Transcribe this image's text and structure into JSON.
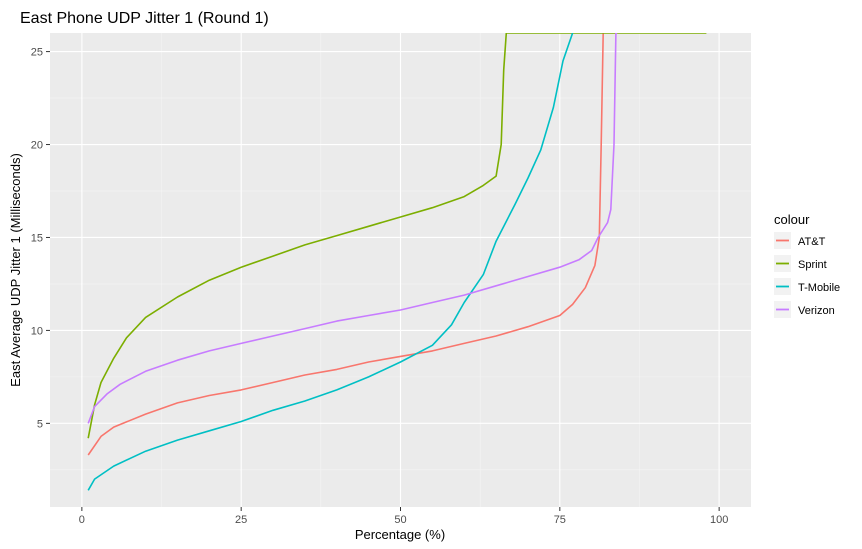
{
  "chart_data": {
    "type": "line",
    "title": "East Phone UDP Jitter 1 (Round 1)",
    "xlabel": "Percentage (%)",
    "ylabel": "East Average UDP Jitter 1 (Milliseconds)",
    "xlim": [
      -5,
      105
    ],
    "ylim": [
      0.5,
      26
    ],
    "xticks": [
      0,
      25,
      50,
      75,
      100
    ],
    "xtick_labels": [
      "0",
      "25",
      "50",
      "75",
      "100"
    ],
    "yticks": [
      5,
      10,
      15,
      20,
      25
    ],
    "ytick_labels": [
      "5",
      "10",
      "15",
      "20",
      "25"
    ],
    "grid": true,
    "legend": {
      "title": "colour",
      "placement": "right"
    },
    "series": [
      {
        "name": "AT&T",
        "color": "#F8766D",
        "points": [
          [
            1,
            3.3
          ],
          [
            3,
            4.3
          ],
          [
            5,
            4.8
          ],
          [
            10,
            5.5
          ],
          [
            15,
            6.1
          ],
          [
            20,
            6.5
          ],
          [
            25,
            6.8
          ],
          [
            30,
            7.2
          ],
          [
            35,
            7.6
          ],
          [
            40,
            7.9
          ],
          [
            45,
            8.3
          ],
          [
            50,
            8.6
          ],
          [
            55,
            8.9
          ],
          [
            60,
            9.3
          ],
          [
            65,
            9.7
          ],
          [
            70,
            10.2
          ],
          [
            75,
            10.8
          ],
          [
            77,
            11.4
          ],
          [
            79,
            12.3
          ],
          [
            80.5,
            13.5
          ],
          [
            81.2,
            15
          ],
          [
            81.5,
            20
          ],
          [
            81.8,
            26
          ]
        ]
      },
      {
        "name": "Sprint",
        "color": "#7CAE00",
        "points": [
          [
            1,
            4.2
          ],
          [
            2,
            6.0
          ],
          [
            3,
            7.2
          ],
          [
            5,
            8.5
          ],
          [
            7,
            9.6
          ],
          [
            10,
            10.7
          ],
          [
            15,
            11.8
          ],
          [
            20,
            12.7
          ],
          [
            25,
            13.4
          ],
          [
            30,
            14.0
          ],
          [
            35,
            14.6
          ],
          [
            40,
            15.1
          ],
          [
            45,
            15.6
          ],
          [
            50,
            16.1
          ],
          [
            55,
            16.6
          ],
          [
            60,
            17.2
          ],
          [
            63,
            17.8
          ],
          [
            65,
            18.3
          ],
          [
            65.8,
            20
          ],
          [
            66.2,
            24
          ],
          [
            66.6,
            26
          ],
          [
            98,
            26
          ]
        ]
      },
      {
        "name": "T-Mobile",
        "color": "#00BFC4",
        "points": [
          [
            1,
            1.4
          ],
          [
            2,
            2.0
          ],
          [
            5,
            2.7
          ],
          [
            10,
            3.5
          ],
          [
            15,
            4.1
          ],
          [
            20,
            4.6
          ],
          [
            25,
            5.1
          ],
          [
            30,
            5.7
          ],
          [
            35,
            6.2
          ],
          [
            40,
            6.8
          ],
          [
            45,
            7.5
          ],
          [
            50,
            8.3
          ],
          [
            55,
            9.2
          ],
          [
            58,
            10.3
          ],
          [
            60,
            11.5
          ],
          [
            63,
            13
          ],
          [
            65,
            14.8
          ],
          [
            68,
            16.8
          ],
          [
            70,
            18.2
          ],
          [
            72,
            19.7
          ],
          [
            74,
            22
          ],
          [
            75.5,
            24.5
          ],
          [
            77,
            26
          ]
        ]
      },
      {
        "name": "Verizon",
        "color": "#C77CFF",
        "points": [
          [
            1,
            5.0
          ],
          [
            2,
            5.9
          ],
          [
            4,
            6.6
          ],
          [
            6,
            7.1
          ],
          [
            10,
            7.8
          ],
          [
            15,
            8.4
          ],
          [
            20,
            8.9
          ],
          [
            25,
            9.3
          ],
          [
            30,
            9.7
          ],
          [
            35,
            10.1
          ],
          [
            40,
            10.5
          ],
          [
            45,
            10.8
          ],
          [
            50,
            11.1
          ],
          [
            55,
            11.5
          ],
          [
            60,
            11.9
          ],
          [
            65,
            12.4
          ],
          [
            70,
            12.9
          ],
          [
            75,
            13.4
          ],
          [
            78,
            13.8
          ],
          [
            80,
            14.3
          ],
          [
            81,
            15
          ],
          [
            82.5,
            15.8
          ],
          [
            83,
            16.5
          ],
          [
            83.5,
            20
          ],
          [
            83.8,
            26
          ],
          [
            84,
            26
          ]
        ]
      }
    ]
  }
}
